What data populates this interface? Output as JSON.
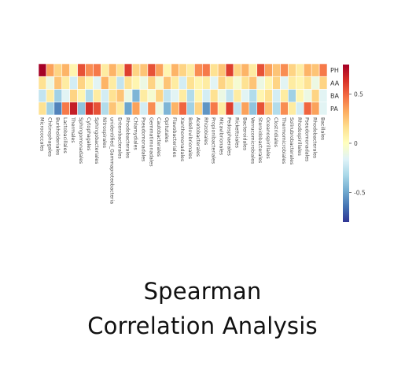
{
  "chart_data": {
    "type": "heatmap",
    "title": "",
    "rows": [
      "PH",
      "AA",
      "BA",
      "PA"
    ],
    "columns": [
      "Micrococcales",
      "Chitinophagales",
      "Burkholderiales",
      "Lactobacillales",
      "Thermales",
      "Sphingomonadales",
      "Cytophagales",
      "Sphingobacteriales",
      "Nitrospirales",
      "unidentified_Gammaproteobacteria",
      "Enterobacterales",
      "Rhodobacterales",
      "Chlamydiales",
      "Pseudomonadales",
      "Gemmatimonadales",
      "Caulobacterales",
      "Opitutales",
      "Flavobacteriales",
      "Xanthomonadales",
      "Bdellovibrionales",
      "Acetobacterales",
      "Rhizobiales",
      "Propionibacteriales",
      "Micavibrionales",
      "Pedosphaerales",
      "Rickettsiales",
      "Bacteroidales",
      "Verrucomicrobiales",
      "Steroidobacterales",
      "Oceanospirillales",
      "Clostridiales",
      "Thermomicrobiales",
      "Solirubrobacterales",
      "Rhodospirillales",
      "Pseudomonadales",
      "Rhodobacterales",
      "Bacillales"
    ],
    "values": [
      [
        0.85,
        0.35,
        0.2,
        0.3,
        0.05,
        0.55,
        0.4,
        0.45,
        0.1,
        0.3,
        0.15,
        0.6,
        0.2,
        0.25,
        0.55,
        0.35,
        0.05,
        0.3,
        0.2,
        0.1,
        0.4,
        0.45,
        0.15,
        0.25,
        0.6,
        0.2,
        0.3,
        0.1,
        0.55,
        0.35,
        0.25,
        0.4,
        0.2,
        0.1,
        0.3,
        0.25,
        0.45
      ],
      [
        0.15,
        -0.1,
        0.25,
        0.1,
        -0.2,
        0.2,
        0.05,
        -0.15,
        0.3,
        0.1,
        -0.25,
        0.15,
        0.05,
        -0.1,
        0.2,
        -0.05,
        0.25,
        0.1,
        -0.2,
        0.15,
        0.05,
        0.1,
        -0.15,
        0.2,
        0.1,
        -0.05,
        0.15,
        0.25,
        -0.1,
        0.05,
        0.2,
        -0.15,
        0.1,
        0.05,
        0.15,
        -0.1,
        0.2
      ],
      [
        -0.25,
        0.1,
        -0.35,
        -0.15,
        0.2,
        0.05,
        -0.3,
        0.1,
        -0.2,
        0.15,
        0.25,
        -0.1,
        -0.45,
        0.1,
        -0.05,
        0.2,
        -0.25,
        -0.15,
        0.1,
        -0.3,
        0.05,
        -0.2,
        0.15,
        -0.1,
        -0.25,
        0.1,
        -0.15,
        -0.3,
        0.05,
        0.15,
        -0.2,
        0.1,
        -0.35,
        0.05,
        -0.1,
        0.2,
        -0.15
      ],
      [
        0.15,
        -0.35,
        -0.6,
        0.45,
        0.7,
        -0.4,
        0.65,
        0.55,
        -0.3,
        0.25,
        0.1,
        -0.5,
        0.35,
        -0.2,
        0.4,
        -0.1,
        -0.45,
        0.3,
        0.5,
        -0.35,
        0.2,
        -0.55,
        0.45,
        0.1,
        0.6,
        -0.25,
        0.35,
        -0.4,
        0.55,
        0.25,
        -0.3,
        0.4,
        0.1,
        -0.2,
        0.5,
        0.35,
        -0.15
      ]
    ],
    "colorbar": {
      "range": [
        -0.8,
        0.8
      ],
      "ticks": [
        0.5,
        0,
        -0.5
      ],
      "tick_labels": [
        "0.5",
        "0",
        "-0.5"
      ],
      "colors": [
        "#313695",
        "#4575b4",
        "#74add1",
        "#abd9e9",
        "#e0f3f8",
        "#ffffbf",
        "#fee090",
        "#fdae61",
        "#f46d43",
        "#d73027",
        "#a50026"
      ]
    },
    "grid": true
  },
  "caption": {
    "line1": "Spearman",
    "line2": "Correlation Analysis"
  }
}
